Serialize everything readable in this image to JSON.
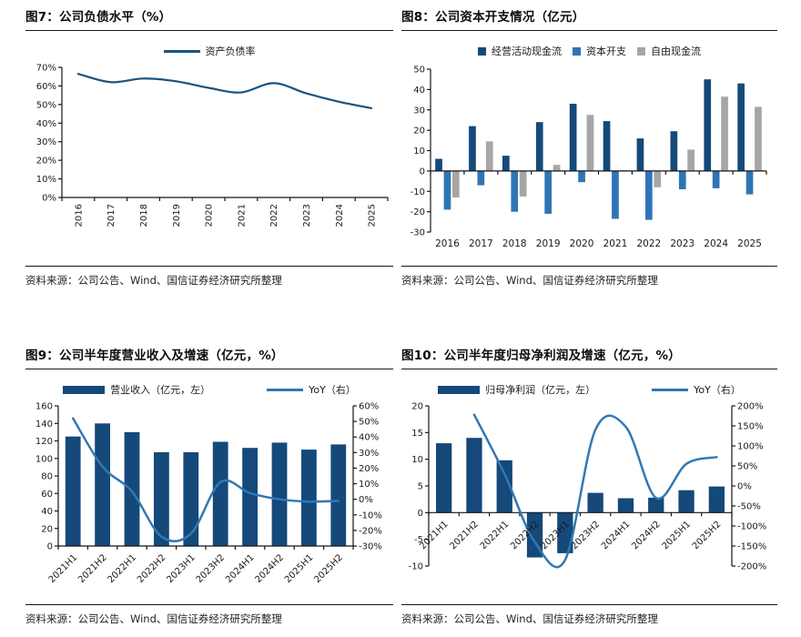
{
  "page": {
    "background": "#ffffff"
  },
  "colors": {
    "navy": "#14497A",
    "blue": "#2E75B6",
    "gray": "#A6A6A6",
    "line_blue": "#3178B4",
    "line_navy": "#1B5380"
  },
  "figures": [
    {
      "title": "图7：公司负债水平（%）",
      "source": "资料来源：公司公告、Wind、国信证券经济研究所整理"
    },
    {
      "title": "图8：公司资本开支情况（亿元）",
      "source": "资料来源：公司公告、Wind、国信证券经济研究所整理"
    },
    {
      "title": "图9：公司半年度营业收入及增速（亿元，%）",
      "source": "资料来源：公司公告、Wind、国信证券经济研究所整理"
    },
    {
      "title": "图10：公司半年度归母净利润及增速（亿元，%）",
      "source": "资料来源：公司公告、Wind、国信证券经济研究所整理"
    }
  ],
  "chart_data": [
    {
      "type": "line",
      "title": "公司负债水平（%）",
      "categories": [
        "2016",
        "2017",
        "2018",
        "2019",
        "2020",
        "2021",
        "2022",
        "2023",
        "2024",
        "2025"
      ],
      "left": {
        "min": 0,
        "max": 70,
        "step": 10,
        "fmt": "pct"
      },
      "legend_position": "top-center",
      "grid": false,
      "series": [
        {
          "kind": "line",
          "axis": "left",
          "name": "资产负债率",
          "color": "#1B5380",
          "width": 2.2,
          "values": [
            66.5,
            62,
            64,
            62.5,
            59,
            56.5,
            61.5,
            56,
            51.5,
            48
          ]
        }
      ]
    },
    {
      "type": "bar",
      "title": "公司资本开支情况（亿元）",
      "categories": [
        "2016",
        "2017",
        "2018",
        "2019",
        "2020",
        "2021",
        "2022",
        "2023",
        "2024",
        "2025"
      ],
      "left": {
        "min": -30,
        "max": 50,
        "step": 10,
        "fmt": "num"
      },
      "legend_position": "top-center",
      "grid": false,
      "series": [
        {
          "kind": "bar",
          "name": "经营活动现金流",
          "color": "#14497A",
          "values": [
            6,
            22,
            7.5,
            24,
            33,
            24.5,
            16,
            19.5,
            45,
            43
          ]
        },
        {
          "kind": "bar",
          "name": "资本开支",
          "color": "#2E75B6",
          "values": [
            -19,
            -7,
            -20,
            -21,
            -5.5,
            -23.5,
            -24,
            -9,
            -8.5,
            -11.5
          ]
        },
        {
          "kind": "bar",
          "name": "自由现金流",
          "color": "#A6A6A6",
          "values": [
            -13,
            14.5,
            -12.5,
            3,
            27.5,
            0.5,
            -8,
            10.5,
            36.5,
            31.5
          ]
        }
      ]
    },
    {
      "type": "bar-line",
      "title": "公司半年度营业收入及增速（亿元，%）",
      "categories": [
        "2021H1",
        "2021H2",
        "2022H1",
        "2022H2",
        "2023H1",
        "2023H2",
        "2024H1",
        "2024H2",
        "2025H1",
        "2025H2"
      ],
      "left": {
        "min": 0,
        "max": 160,
        "step": 20,
        "fmt": "num"
      },
      "right": {
        "min": -30,
        "max": 60,
        "step": 10,
        "fmt": "pct"
      },
      "legend_position": "top-center",
      "grid": false,
      "series": [
        {
          "kind": "bar",
          "axis": "left",
          "name": "营业收入（亿元，左）",
          "color": "#14497A",
          "values": [
            125,
            140,
            130,
            107,
            107,
            119,
            112,
            118,
            110,
            116
          ]
        },
        {
          "kind": "line",
          "axis": "right",
          "name": "YoY（右）",
          "color": "#3178B4",
          "width": 2.5,
          "values": [
            52,
            21,
            5,
            -24,
            -22,
            11,
            4,
            0,
            -1.5,
            -1
          ]
        }
      ]
    },
    {
      "type": "bar-line",
      "title": "公司半年度归母净利润及增速（亿元，%）",
      "categories": [
        "2021H1",
        "2021H2",
        "2022H1",
        "2022H2",
        "2023H1",
        "2023H2",
        "2024H1",
        "2024H2",
        "2025H1",
        "2025H2"
      ],
      "left": {
        "min": -10,
        "max": 20,
        "step": 5,
        "fmt": "num"
      },
      "right": {
        "min": -200,
        "max": 200,
        "step": 50,
        "fmt": "pct"
      },
      "legend_position": "top-center",
      "grid": false,
      "series": [
        {
          "kind": "bar",
          "axis": "left",
          "name": "归母净利润（亿元，左）",
          "color": "#14497A",
          "values": [
            13,
            14,
            9.8,
            -8.4,
            -7.6,
            3.7,
            2.7,
            2.8,
            4.2,
            4.9
          ]
        },
        {
          "kind": "line",
          "axis": "right",
          "name": "YoY（右）",
          "color": "#3178B4",
          "width": 2.5,
          "values": [
            null,
            178,
            30,
            -140,
            -185,
            140,
            148,
            -30,
            55,
            72
          ]
        }
      ]
    }
  ]
}
